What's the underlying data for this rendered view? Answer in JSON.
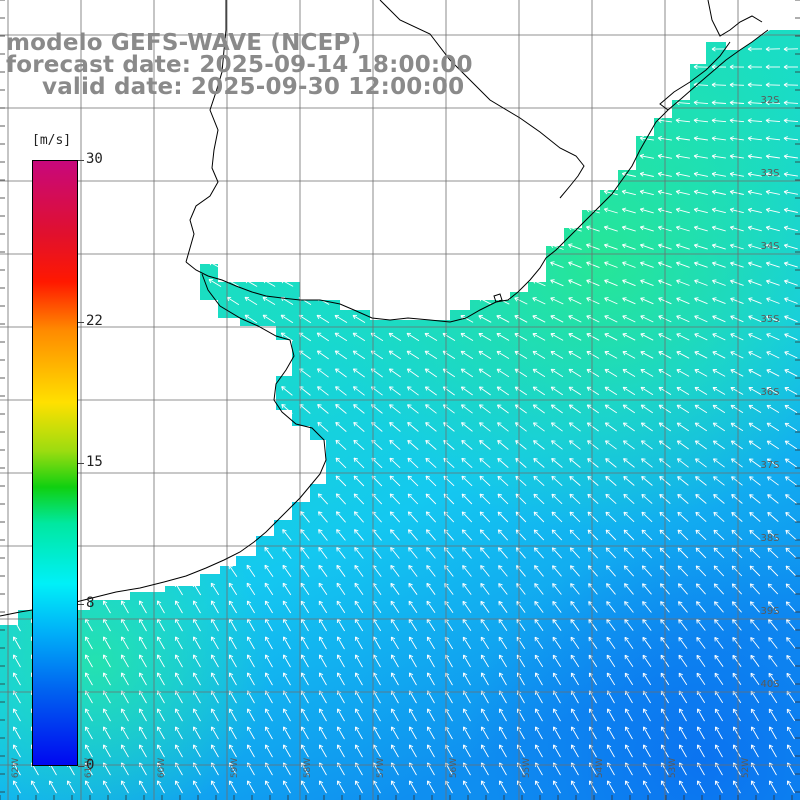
{
  "titles": {
    "line1": "modelo GEFS-WAVE (NCEP)",
    "line2": "forecast date: 2025-09-14 18:00:00",
    "line3": "valid date: 2025-09-30 12:00:00"
  },
  "colorbar": {
    "unit": "[m/s]",
    "ticks": [
      "30",
      "22",
      "15",
      "8",
      "0"
    ],
    "tick_values": [
      30,
      22,
      15,
      8,
      0
    ],
    "range": [
      0,
      30
    ]
  },
  "lat_labels": [
    "32S",
    "33S",
    "34S",
    "35S",
    "36S",
    "37S",
    "38S",
    "39S",
    "40S"
  ],
  "lon_labels": [
    "62W",
    "61W",
    "60W",
    "59W",
    "58W",
    "57W",
    "56W",
    "55W",
    "54W",
    "53W",
    "52W"
  ],
  "colors": {
    "land": "#ffffff",
    "grid": "#666666",
    "coast": "#000000",
    "arrow": "#ffffff"
  }
}
